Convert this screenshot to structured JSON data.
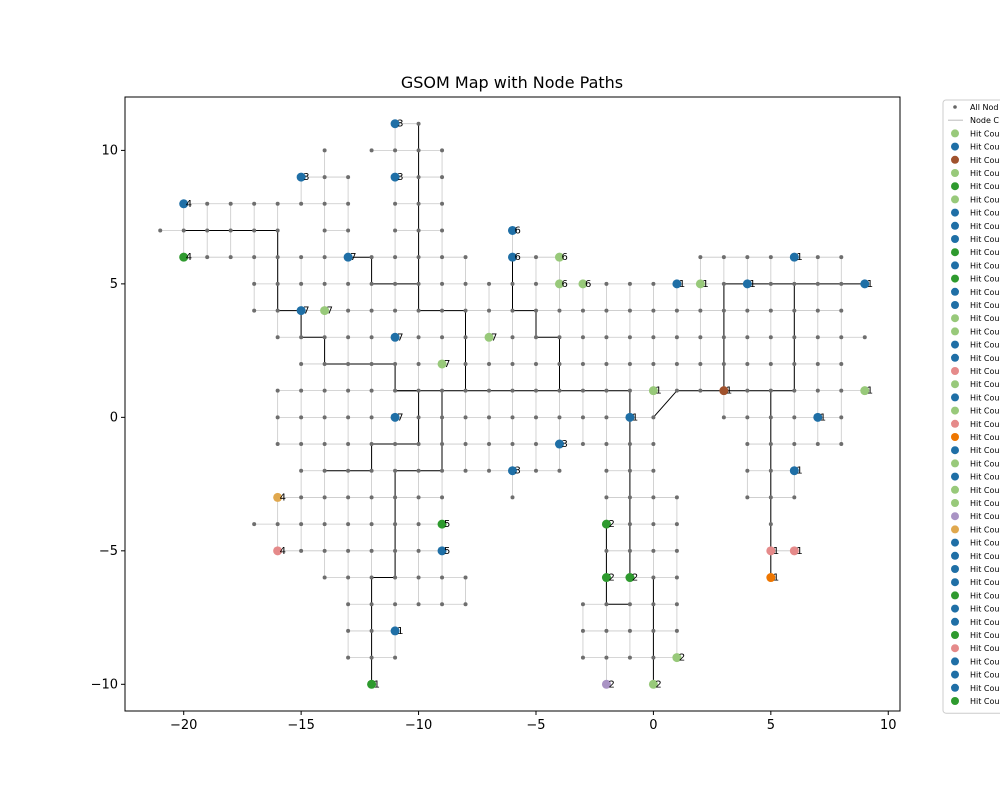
{
  "chart_data": {
    "type": "scatter",
    "title": "GSOM Map with Node Paths",
    "xlabel": "",
    "ylabel": "",
    "xlim": [
      -22.5,
      10.5
    ],
    "ylim": [
      -11,
      12
    ],
    "x_ticks": [
      -20,
      -15,
      -10,
      -5,
      0,
      5,
      10
    ],
    "y_ticks": [
      -10,
      -5,
      0,
      5,
      10
    ],
    "x_tick_labels": [
      "−20",
      "−15",
      "−10",
      "−5",
      "0",
      "5",
      "10"
    ],
    "y_tick_labels": [
      "−10",
      "−5",
      "0",
      "5",
      "10"
    ],
    "grid": false,
    "legend_placement": "outside-right",
    "legend": [
      {
        "label": "All Nod",
        "marker": "small-dot",
        "color": "#666666"
      },
      {
        "label": "Node C",
        "marker": "line",
        "color": "#bbbbbb"
      },
      {
        "label": "Hit Cou",
        "color": "#98c97a"
      },
      {
        "label": "Hit Cou",
        "color": "#1f6fa6"
      },
      {
        "label": "Hit Cou",
        "color": "#a0522d"
      },
      {
        "label": "Hit Cou",
        "color": "#98c97a"
      },
      {
        "label": "Hit Cou",
        "color": "#2e9a2e"
      },
      {
        "label": "Hit Cou",
        "color": "#98c97a"
      },
      {
        "label": "Hit Cou",
        "color": "#1f6fa6"
      },
      {
        "label": "Hit Cou",
        "color": "#1f6fa6"
      },
      {
        "label": "Hit Cou",
        "color": "#1f6fa6"
      },
      {
        "label": "Hit Cou",
        "color": "#2e9a2e"
      },
      {
        "label": "Hit Cou",
        "color": "#1f6fa6"
      },
      {
        "label": "Hit Cou",
        "color": "#2e9a2e"
      },
      {
        "label": "Hit Cou",
        "color": "#1f6fa6"
      },
      {
        "label": "Hit Cou",
        "color": "#1f6fa6"
      },
      {
        "label": "Hit Cou",
        "color": "#98c97a"
      },
      {
        "label": "Hit Cou",
        "color": "#98c97a"
      },
      {
        "label": "Hit Cou",
        "color": "#1f6fa6"
      },
      {
        "label": "Hit Cou",
        "color": "#1f6fa6"
      },
      {
        "label": "Hit Cou",
        "color": "#e58a8a"
      },
      {
        "label": "Hit Cou",
        "color": "#98c97a"
      },
      {
        "label": "Hit Cou",
        "color": "#1f6fa6"
      },
      {
        "label": "Hit Cou",
        "color": "#98c97a"
      },
      {
        "label": "Hit Cou",
        "color": "#e58a8a"
      },
      {
        "label": "Hit Cou",
        "color": "#ee7600"
      },
      {
        "label": "Hit Cou",
        "color": "#1f6fa6"
      },
      {
        "label": "Hit Cou",
        "color": "#98c97a"
      },
      {
        "label": "Hit Cou",
        "color": "#1f6fa6"
      },
      {
        "label": "Hit Cou",
        "color": "#98c97a"
      },
      {
        "label": "Hit Cou",
        "color": "#98c97a"
      },
      {
        "label": "Hit Cou",
        "color": "#a993c4"
      },
      {
        "label": "Hit Cou",
        "color": "#e0a84e"
      },
      {
        "label": "Hit Cou",
        "color": "#1f6fa6"
      },
      {
        "label": "Hit Cou",
        "color": "#1f6fa6"
      },
      {
        "label": "Hit Cou",
        "color": "#1f6fa6"
      },
      {
        "label": "Hit Cou",
        "color": "#1f6fa6"
      },
      {
        "label": "Hit Cou",
        "color": "#2e9a2e"
      },
      {
        "label": "Hit Cou",
        "color": "#1f6fa6"
      },
      {
        "label": "Hit Cou",
        "color": "#1f6fa6"
      },
      {
        "label": "Hit Cou",
        "color": "#2e9a2e"
      },
      {
        "label": "Hit Cou",
        "color": "#e58a8a"
      },
      {
        "label": "Hit Cou",
        "color": "#1f6fa6"
      },
      {
        "label": "Hit Cou",
        "color": "#1f6fa6"
      },
      {
        "label": "Hit Cou",
        "color": "#1f6fa6"
      },
      {
        "label": "Hit Cou",
        "color": "#2e9a2e"
      }
    ],
    "hit_nodes": [
      {
        "x": -11,
        "y": 11,
        "label": "3",
        "color": "#1f6fa6"
      },
      {
        "x": -15,
        "y": 9,
        "label": "3",
        "color": "#1f6fa6"
      },
      {
        "x": -11,
        "y": 9,
        "label": "3",
        "color": "#1f6fa6"
      },
      {
        "x": -20,
        "y": 8,
        "label": "4",
        "color": "#1f6fa6"
      },
      {
        "x": -20,
        "y": 6,
        "label": "4",
        "color": "#2e9a2e"
      },
      {
        "x": -13,
        "y": 6,
        "label": "7",
        "color": "#1f6fa6"
      },
      {
        "x": -15,
        "y": 4,
        "label": "7",
        "color": "#1f6fa6"
      },
      {
        "x": -14,
        "y": 4,
        "label": "7",
        "color": "#98c97a"
      },
      {
        "x": -11,
        "y": 3,
        "label": "7",
        "color": "#1f6fa6"
      },
      {
        "x": -9,
        "y": 2,
        "label": "7",
        "color": "#98c97a"
      },
      {
        "x": -7,
        "y": 3,
        "label": "7",
        "color": "#98c97a"
      },
      {
        "x": -11,
        "y": 0,
        "label": "7",
        "color": "#1f6fa6"
      },
      {
        "x": -6,
        "y": 7,
        "label": "6",
        "color": "#1f6fa6"
      },
      {
        "x": -6,
        "y": 6,
        "label": "6",
        "color": "#1f6fa6"
      },
      {
        "x": -4,
        "y": 6,
        "label": "6",
        "color": "#98c97a"
      },
      {
        "x": -4,
        "y": 5,
        "label": "6",
        "color": "#98c97a"
      },
      {
        "x": -3,
        "y": 5,
        "label": "6",
        "color": "#98c97a"
      },
      {
        "x": 1,
        "y": 5,
        "label": "1",
        "color": "#1f6fa6"
      },
      {
        "x": 2,
        "y": 5,
        "label": "1",
        "color": "#98c97a"
      },
      {
        "x": 4,
        "y": 5,
        "label": "1",
        "color": "#1f6fa6"
      },
      {
        "x": 6,
        "y": 6,
        "label": "1",
        "color": "#1f6fa6"
      },
      {
        "x": 9,
        "y": 5,
        "label": "1",
        "color": "#1f6fa6"
      },
      {
        "x": 0,
        "y": 1,
        "label": "1",
        "color": "#98c97a"
      },
      {
        "x": 3,
        "y": 1,
        "label": "1",
        "color": "#a0522d"
      },
      {
        "x": 9,
        "y": 1,
        "label": "1",
        "color": "#98c97a"
      },
      {
        "x": -1,
        "y": 0,
        "label": "1",
        "color": "#1f6fa6"
      },
      {
        "x": 7,
        "y": 0,
        "label": "1",
        "color": "#1f6fa6"
      },
      {
        "x": -4,
        "y": -1,
        "label": "3",
        "color": "#1f6fa6"
      },
      {
        "x": -6,
        "y": -2,
        "label": "3",
        "color": "#1f6fa6"
      },
      {
        "x": 6,
        "y": -2,
        "label": "1",
        "color": "#1f6fa6"
      },
      {
        "x": -16,
        "y": -3,
        "label": "4",
        "color": "#e0a84e"
      },
      {
        "x": -16,
        "y": -5,
        "label": "4",
        "color": "#e58a8a"
      },
      {
        "x": -9,
        "y": -4,
        "label": "5",
        "color": "#2e9a2e"
      },
      {
        "x": -9,
        "y": -5,
        "label": "5",
        "color": "#1f6fa6"
      },
      {
        "x": -2,
        "y": -4,
        "label": "2",
        "color": "#2e9a2e"
      },
      {
        "x": -2,
        "y": -6,
        "label": "2",
        "color": "#2e9a2e"
      },
      {
        "x": -1,
        "y": -6,
        "label": "2",
        "color": "#2e9a2e"
      },
      {
        "x": 5,
        "y": -5,
        "label": "1",
        "color": "#e58a8a"
      },
      {
        "x": 6,
        "y": -5,
        "label": "1",
        "color": "#e58a8a"
      },
      {
        "x": 5,
        "y": -6,
        "label": "1",
        "color": "#ee7600"
      },
      {
        "x": -11,
        "y": -8,
        "label": "1",
        "color": "#1f6fa6"
      },
      {
        "x": -12,
        "y": -10,
        "label": "1",
        "color": "#2e9a2e"
      },
      {
        "x": 1,
        "y": -9,
        "label": "2",
        "color": "#98c97a"
      },
      {
        "x": -2,
        "y": -10,
        "label": "2",
        "color": "#a993c4"
      },
      {
        "x": 0,
        "y": -10,
        "label": "2",
        "color": "#98c97a"
      }
    ],
    "paths": [
      [
        [
          -20,
          7
        ],
        [
          -16,
          7
        ],
        [
          -16,
          4
        ],
        [
          -15,
          4
        ],
        [
          -15,
          3
        ],
        [
          -14,
          3
        ],
        [
          -14,
          2
        ],
        [
          -11,
          2
        ],
        [
          -11,
          1
        ],
        [
          -1,
          1
        ],
        [
          -1,
          -6
        ]
      ],
      [
        [
          -13,
          6
        ],
        [
          -12,
          6
        ],
        [
          -12,
          5
        ],
        [
          -10,
          5
        ],
        [
          -10,
          4
        ],
        [
          -8,
          4
        ],
        [
          -8,
          1
        ]
      ],
      [
        [
          -10,
          11
        ],
        [
          -10,
          5
        ]
      ],
      [
        [
          -11,
          1
        ],
        [
          -10,
          1
        ],
        [
          -10,
          -1
        ],
        [
          -12,
          -1
        ],
        [
          -12,
          -2
        ],
        [
          -14,
          -2
        ]
      ],
      [
        [
          -9,
          1
        ],
        [
          -9,
          -2
        ],
        [
          -11,
          -2
        ],
        [
          -11,
          -6
        ],
        [
          -12,
          -6
        ],
        [
          -12,
          -10
        ]
      ],
      [
        [
          -6,
          6
        ],
        [
          -6,
          4
        ],
        [
          -5,
          4
        ],
        [
          -5,
          3
        ],
        [
          -4,
          3
        ],
        [
          -4,
          1
        ]
      ],
      [
        [
          0,
          0
        ],
        [
          1,
          1
        ],
        [
          6,
          1
        ],
        [
          6,
          5
        ],
        [
          9,
          5
        ]
      ],
      [
        [
          3,
          1
        ],
        [
          3,
          5
        ],
        [
          6,
          5
        ]
      ],
      [
        [
          5,
          1
        ],
        [
          5,
          -6
        ]
      ],
      [
        [
          0,
          -6
        ],
        [
          0,
          -10
        ]
      ],
      [
        [
          -2,
          -4
        ],
        [
          -2,
          -7
        ],
        [
          -1,
          -7
        ]
      ]
    ],
    "grid_nodes_rows": [
      {
        "y": 11,
        "x": [
          -11,
          -10
        ]
      },
      {
        "y": 10,
        "x": [
          -14,
          -12,
          -11,
          -10,
          -9
        ]
      },
      {
        "y": 9,
        "x": [
          -15,
          -14,
          -13,
          -11,
          -10,
          -9
        ]
      },
      {
        "y": 8,
        "x": [
          -20,
          -19,
          -18,
          -17,
          -16,
          -15,
          -14,
          -13,
          -11,
          -10,
          -9
        ]
      },
      {
        "y": 7,
        "x": [
          -21,
          -20,
          -19,
          -18,
          -17,
          -16,
          -14,
          -13,
          -11,
          -10,
          -9,
          -6
        ]
      },
      {
        "y": 6,
        "x": [
          -20,
          -19,
          -18,
          -17,
          -16,
          -15,
          -14,
          -13,
          -12,
          -11,
          -10,
          -9,
          -8,
          -6,
          -5,
          -4,
          2,
          3,
          4,
          5,
          6,
          7,
          8
        ]
      },
      {
        "y": 5,
        "x": [
          -17,
          -16,
          -15,
          -14,
          -13,
          -12,
          -11,
          -10,
          -9,
          -8,
          -7,
          -6,
          -5,
          -4,
          -3,
          -2,
          -1,
          0,
          1,
          2,
          3,
          4,
          5,
          6,
          7,
          8,
          9
        ]
      },
      {
        "y": 4,
        "x": [
          -17,
          -16,
          -15,
          -14,
          -13,
          -12,
          -11,
          -10,
          -9,
          -8,
          -7,
          -6,
          -5,
          -4,
          -3,
          -2,
          -1,
          0,
          1,
          2,
          3,
          4,
          5,
          6,
          7,
          8
        ]
      },
      {
        "y": 3,
        "x": [
          -16,
          -15,
          -14,
          -13,
          -12,
          -11,
          -10,
          -9,
          -8,
          -7,
          -6,
          -5,
          -4,
          -3,
          -2,
          -1,
          0,
          1,
          2,
          3,
          4,
          5,
          6,
          7,
          8,
          9
        ]
      },
      {
        "y": 2,
        "x": [
          -15,
          -14,
          -13,
          -12,
          -11,
          -10,
          -9,
          -8,
          -7,
          -6,
          -5,
          -4,
          -3,
          -2,
          -1,
          0,
          1,
          2,
          3,
          4,
          5,
          6,
          7,
          8
        ]
      },
      {
        "y": 1,
        "x": [
          -16,
          -15,
          -14,
          -13,
          -12,
          -11,
          -10,
          -9,
          -8,
          -7,
          -6,
          -5,
          -4,
          -3,
          -2,
          -1,
          0,
          1,
          2,
          3,
          4,
          5,
          6,
          7,
          8,
          9
        ]
      },
      {
        "y": 0,
        "x": [
          -16,
          -15,
          -14,
          -13,
          -12,
          -11,
          -10,
          -9,
          -8,
          -7,
          -6,
          -5,
          -4,
          -3,
          -2,
          -1,
          0,
          3,
          4,
          5,
          6,
          7,
          8
        ]
      },
      {
        "y": -1,
        "x": [
          -16,
          -15,
          -14,
          -13,
          -12,
          -11,
          -10,
          -9,
          -8,
          -7,
          -6,
          -5,
          -4,
          -3,
          -2,
          -1,
          0,
          4,
          5,
          6,
          7,
          8
        ]
      },
      {
        "y": -2,
        "x": [
          -15,
          -14,
          -13,
          -12,
          -11,
          -10,
          -9,
          -8,
          -7,
          -6,
          -5,
          -4,
          -2,
          -1,
          0,
          4,
          5,
          6
        ]
      },
      {
        "y": -3,
        "x": [
          -16,
          -15,
          -14,
          -13,
          -12,
          -11,
          -10,
          -9,
          -6,
          -2,
          -1,
          0,
          1,
          4,
          5,
          6
        ]
      },
      {
        "y": -4,
        "x": [
          -17,
          -16,
          -15,
          -14,
          -13,
          -12,
          -11,
          -10,
          -9,
          -2,
          -1,
          0,
          1,
          5
        ]
      },
      {
        "y": -5,
        "x": [
          -16,
          -15,
          -14,
          -13,
          -12,
          -11,
          -10,
          -9,
          -2,
          -1,
          0,
          1,
          5,
          6
        ]
      },
      {
        "y": -6,
        "x": [
          -14,
          -13,
          -12,
          -11,
          -10,
          -9,
          -8,
          -2,
          -1,
          0,
          1,
          5
        ]
      },
      {
        "y": -7,
        "x": [
          -13,
          -12,
          -11,
          -10,
          -9,
          -8,
          -3,
          -2,
          -1,
          0,
          1
        ]
      },
      {
        "y": -8,
        "x": [
          -13,
          -12,
          -11,
          -3,
          -2,
          -1,
          0,
          1
        ]
      },
      {
        "y": -9,
        "x": [
          -13,
          -12,
          -11,
          -3,
          -2,
          -1,
          0,
          1
        ]
      },
      {
        "y": -10,
        "x": [
          -12,
          -2,
          0
        ]
      }
    ]
  }
}
